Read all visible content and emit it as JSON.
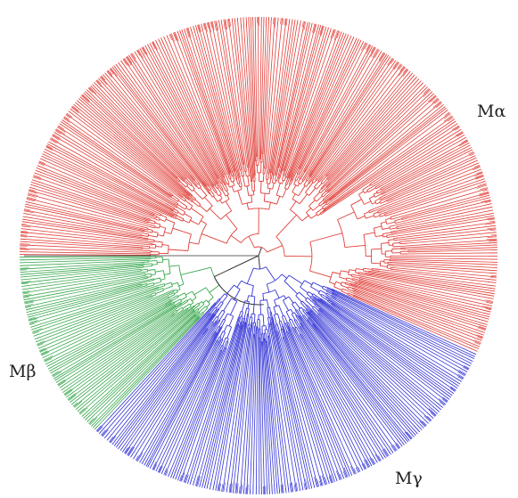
{
  "figure": {
    "clades": [
      {
        "id": "alpha",
        "label": "Mα",
        "color": "#e0403a",
        "leaf_share": 0.56
      },
      {
        "id": "beta",
        "label": "Mβ",
        "color": "#3aa84f",
        "leaf_share": 0.14
      },
      {
        "id": "gamma",
        "label": "Mγ",
        "color": "#3636d6",
        "leaf_share": 0.3
      }
    ],
    "backbone_color": "#333333",
    "background": "#ffffff"
  }
}
